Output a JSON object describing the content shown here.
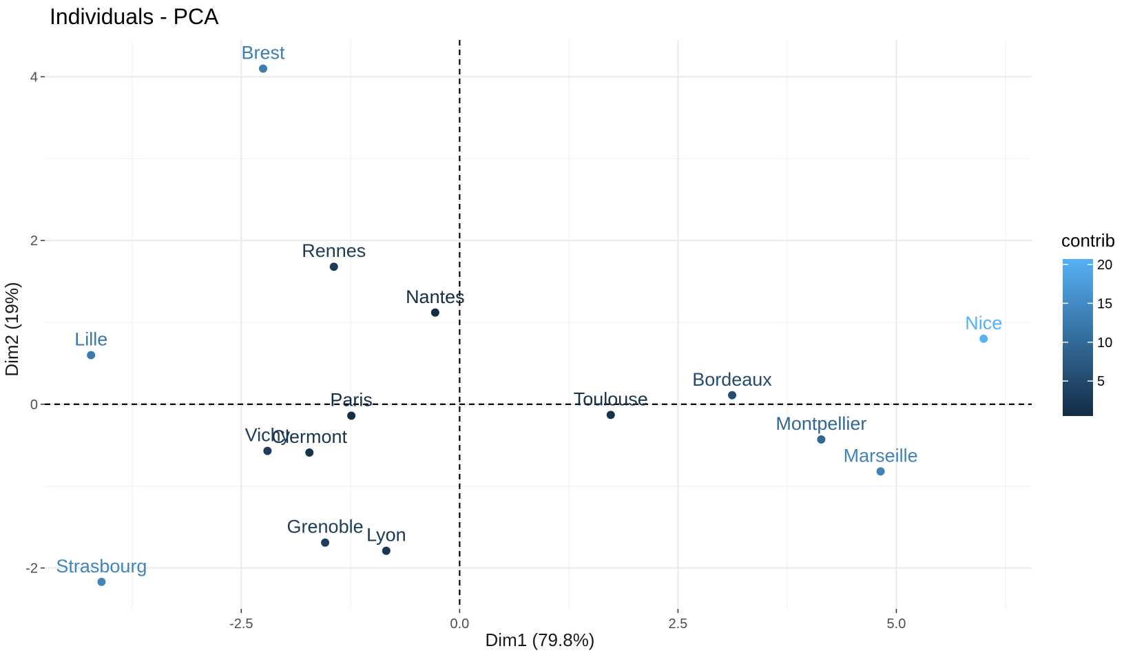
{
  "chart_data": {
    "type": "scatter",
    "title": "Individuals - PCA",
    "xlabel": "Dim1 (79.8%)",
    "ylabel": "Dim2 (19%)",
    "xlim": [
      -4.75,
      6.55
    ],
    "ylim": [
      -2.5,
      4.45
    ],
    "xticks": [
      -2.5,
      0.0,
      2.5,
      5.0
    ],
    "xtick_labels": [
      "-2.5",
      "0.0",
      "2.5",
      "5.0"
    ],
    "yticks": [
      -2,
      0,
      2,
      4
    ],
    "ytick_labels": [
      "-2",
      "0",
      "2",
      "4"
    ],
    "grid": true,
    "reference_lines": {
      "x": 0,
      "y": 0,
      "style": "dashed"
    },
    "color_variable": "contrib",
    "legend": {
      "title": "contrib",
      "placement": "right",
      "range": [
        0.5,
        20.7
      ],
      "ticks": [
        5,
        10,
        15,
        20
      ],
      "tick_labels": [
        "5",
        "10",
        "15",
        "20"
      ],
      "low_color": "#132b43",
      "high_color": "#56b1f7"
    },
    "points": [
      {
        "label": "Brest",
        "x": -2.25,
        "y": 4.1,
        "contrib": 13.0
      },
      {
        "label": "Rennes",
        "x": -1.44,
        "y": 1.68,
        "contrib": 3.0
      },
      {
        "label": "Nantes",
        "x": -0.28,
        "y": 1.12,
        "contrib": 0.8
      },
      {
        "label": "Lille",
        "x": -4.22,
        "y": 0.6,
        "contrib": 12.2
      },
      {
        "label": "Paris",
        "x": -1.24,
        "y": -0.14,
        "contrib": 1.0
      },
      {
        "label": "Vichy",
        "x": -2.2,
        "y": -0.57,
        "contrib": 3.2
      },
      {
        "label": "Clermont",
        "x": -1.72,
        "y": -0.59,
        "contrib": 2.0
      },
      {
        "label": "Grenoble",
        "x": -1.54,
        "y": -1.69,
        "contrib": 3.2
      },
      {
        "label": "Lyon",
        "x": -0.84,
        "y": -1.79,
        "contrib": 2.2
      },
      {
        "label": "Strasbourg",
        "x": -4.1,
        "y": -2.17,
        "contrib": 14.0
      },
      {
        "label": "Toulouse",
        "x": 1.73,
        "y": -0.13,
        "contrib": 1.8
      },
      {
        "label": "Bordeaux",
        "x": 3.12,
        "y": 0.11,
        "contrib": 5.5
      },
      {
        "label": "Montpellier",
        "x": 4.14,
        "y": -0.43,
        "contrib": 9.5
      },
      {
        "label": "Marseille",
        "x": 4.82,
        "y": -0.82,
        "contrib": 13.8
      },
      {
        "label": "Nice",
        "x": 6.0,
        "y": 0.8,
        "contrib": 20.7
      }
    ]
  }
}
